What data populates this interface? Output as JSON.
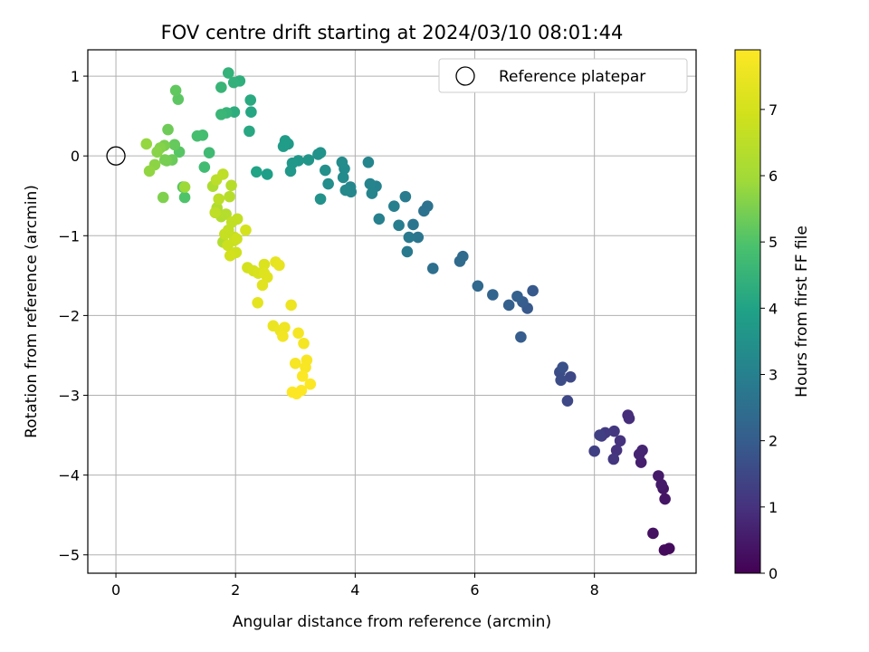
{
  "chart_data": {
    "type": "scatter",
    "title": "FOV centre drift starting at 2024/03/10 08:01:44",
    "xlabel": "Angular distance from reference (arcmin)",
    "ylabel": "Rotation from reference (arcmin)",
    "xlim": [
      -0.47,
      9.7
    ],
    "ylim": [
      -5.23,
      1.33
    ],
    "xticks": [
      "0",
      "2",
      "4",
      "6",
      "8"
    ],
    "xtick_values": [
      0,
      2,
      4,
      6,
      8
    ],
    "yticks": [
      "1",
      "0",
      "−1",
      "−2",
      "−3",
      "−4",
      "−5"
    ],
    "ytick_values": [
      1,
      0,
      -1,
      -2,
      -3,
      -4,
      -5
    ],
    "grid": true,
    "legend": {
      "label": "Reference platepar",
      "placement": "top-right"
    },
    "reference_point": {
      "x": 0,
      "y": 0
    },
    "colorbar": {
      "label": "Hours from first FF file",
      "range": [
        0,
        7.9
      ],
      "ticks": [
        "0",
        "1",
        "2",
        "3",
        "4",
        "5",
        "6",
        "7"
      ],
      "tick_values": [
        0,
        1,
        2,
        3,
        4,
        5,
        6,
        7
      ],
      "colormap": "viridis"
    },
    "series": [
      {
        "x": [
          9.25,
          9.17,
          8.98,
          9.18,
          9.15,
          9.12,
          9.07,
          8.78,
          8.75,
          8.8,
          8.58,
          8.56,
          8.43,
          8.37,
          8.32,
          8.33,
          8.18,
          8.12,
          8.09,
          8.0,
          7.55,
          7.6,
          7.42,
          7.44,
          7.47,
          6.97,
          6.88,
          6.8,
          6.77,
          6.71,
          6.57,
          6.3,
          6.05,
          5.8,
          5.75,
          5.3,
          5.21,
          5.15,
          5.05,
          4.97,
          4.9,
          4.87,
          4.84,
          4.73,
          4.65,
          4.4,
          4.35,
          4.28,
          4.25,
          4.22,
          3.93,
          3.92,
          3.84,
          3.8,
          3.82,
          3.78,
          3.55,
          3.5,
          3.42,
          3.38,
          3.42,
          3.22,
          3.05,
          2.95,
          2.92,
          2.88,
          2.83,
          2.8,
          2.53,
          2.35,
          2.26,
          2.23,
          2.25,
          1.98,
          2.07,
          1.97,
          1.88,
          1.85,
          1.76,
          1.76,
          1.56,
          1.48,
          1.45,
          1.36,
          1.15,
          1.12,
          1.06,
          1.04,
          1.0,
          0.98,
          0.94,
          0.87,
          0.85,
          0.82,
          0.81,
          0.79,
          0.74,
          0.69,
          0.65,
          0.56,
          0.51,
          1.15,
          1.62,
          1.69,
          1.79,
          1.76,
          1.84,
          1.9,
          1.93,
          1.68,
          1.72,
          1.79,
          1.66,
          1.88,
          1.94,
          2.03,
          1.82,
          1.98,
          1.98,
          1.87,
          2.02,
          2.01,
          1.91,
          2.17,
          2.2,
          2.3,
          2.38,
          2.48,
          2.48,
          2.53,
          2.45,
          2.37,
          2.67,
          2.73,
          2.63,
          2.93,
          2.75,
          2.82,
          2.79,
          3.05,
          3.14,
          3.0,
          3.17,
          3.19,
          3.12,
          3.25,
          2.95,
          3.1,
          3.02
        ],
        "y": [
          -4.92,
          -4.94,
          -4.73,
          -4.3,
          -4.17,
          -4.12,
          -4.01,
          -3.84,
          -3.74,
          -3.69,
          -3.29,
          -3.25,
          -3.57,
          -3.69,
          -3.8,
          -3.45,
          -3.47,
          -3.51,
          -3.5,
          -3.7,
          -3.07,
          -2.77,
          -2.71,
          -2.81,
          -2.65,
          -1.69,
          -1.91,
          -1.83,
          -2.27,
          -1.76,
          -1.87,
          -1.74,
          -1.63,
          -1.26,
          -1.32,
          -1.41,
          -0.63,
          -0.69,
          -1.02,
          -0.86,
          -1.02,
          -1.2,
          -0.51,
          -0.87,
          -0.63,
          -0.79,
          -0.38,
          -0.47,
          -0.35,
          -0.08,
          -0.45,
          -0.39,
          -0.43,
          -0.27,
          -0.16,
          -0.08,
          -0.35,
          -0.18,
          -0.54,
          0.02,
          0.04,
          -0.05,
          -0.06,
          -0.09,
          -0.19,
          0.15,
          0.19,
          0.12,
          -0.23,
          -0.2,
          0.55,
          0.31,
          0.7,
          0.55,
          0.94,
          0.92,
          1.04,
          0.54,
          0.86,
          0.52,
          0.04,
          -0.14,
          0.26,
          0.25,
          -0.52,
          -0.39,
          0.05,
          0.71,
          0.82,
          0.14,
          -0.05,
          0.33,
          -0.06,
          -0.05,
          0.13,
          -0.52,
          0.1,
          0.05,
          -0.11,
          -0.19,
          0.15,
          -0.39,
          -0.38,
          -0.65,
          -1.08,
          -0.76,
          -0.73,
          -0.51,
          -0.37,
          -0.3,
          -0.54,
          -0.23,
          -0.71,
          -0.93,
          -0.83,
          -0.79,
          -0.98,
          -1.02,
          -1.06,
          -1.12,
          -1.04,
          -1.21,
          -1.25,
          -0.93,
          -1.4,
          -1.44,
          -1.47,
          -1.36,
          -1.47,
          -1.52,
          -1.62,
          -1.84,
          -1.33,
          -1.37,
          -2.13,
          -1.87,
          -2.19,
          -2.15,
          -2.26,
          -2.22,
          -2.35,
          -2.6,
          -2.65,
          -2.56,
          -2.76,
          -2.86,
          -2.96,
          -2.94,
          -2.98
        ],
        "hours": [
          0.2,
          0.2,
          0.3,
          0.4,
          0.4,
          0.5,
          0.5,
          0.6,
          0.7,
          0.7,
          0.9,
          0.9,
          1.0,
          1.0,
          1.1,
          1.1,
          1.2,
          1.2,
          1.3,
          1.3,
          1.5,
          1.5,
          1.6,
          1.6,
          1.7,
          1.9,
          1.9,
          2.0,
          2.0,
          2.1,
          2.1,
          2.2,
          2.3,
          2.4,
          2.4,
          2.5,
          2.6,
          2.6,
          2.7,
          2.7,
          2.8,
          2.8,
          2.85,
          2.9,
          2.95,
          3.0,
          3.05,
          3.1,
          3.1,
          3.15,
          3.2,
          3.2,
          3.25,
          3.3,
          3.3,
          3.35,
          3.4,
          3.45,
          3.5,
          3.5,
          3.55,
          3.6,
          3.65,
          3.7,
          3.7,
          3.75,
          3.8,
          3.8,
          3.9,
          4.0,
          4.1,
          4.15,
          4.2,
          4.3,
          4.35,
          4.4,
          4.45,
          4.5,
          4.55,
          4.6,
          4.7,
          4.75,
          4.8,
          4.85,
          5.0,
          5.05,
          5.1,
          5.15,
          5.2,
          5.25,
          5.3,
          5.35,
          5.4,
          5.45,
          5.5,
          5.55,
          5.6,
          5.65,
          5.7,
          5.75,
          5.8,
          5.9,
          6.2,
          6.25,
          6.3,
          6.3,
          6.35,
          6.4,
          6.4,
          6.45,
          6.5,
          6.55,
          6.55,
          6.6,
          6.6,
          6.65,
          6.7,
          6.7,
          6.75,
          6.8,
          6.85,
          6.9,
          6.95,
          7.0,
          7.0,
          7.05,
          7.1,
          7.15,
          7.2,
          7.25,
          7.3,
          7.35,
          7.4,
          7.45,
          7.5,
          7.55,
          7.55,
          7.6,
          7.65,
          7.7,
          7.7,
          7.75,
          7.8,
          7.8,
          7.85,
          7.85,
          7.9,
          7.9,
          7.9
        ]
      }
    ]
  }
}
